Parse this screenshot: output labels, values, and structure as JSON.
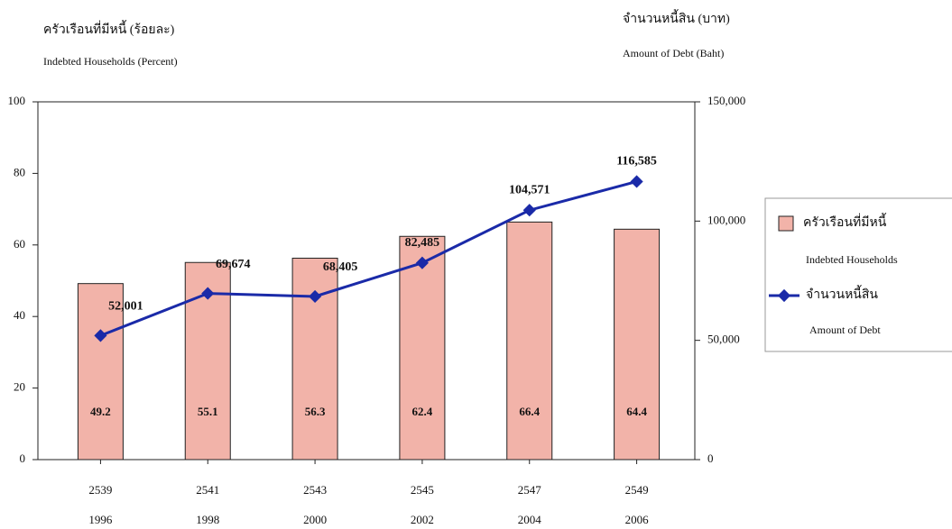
{
  "chart_data": {
    "type": "bar_line",
    "y_label": "ครัวเรือนที่มีหนี้ (ร้อยละ)",
    "y_label_en": "Indebted Households (Percent)",
    "y2_label": "จำนวนหนี้สิน (บาท)",
    "y2_label_en": "Amount of Debt (Baht)",
    "categories": [
      "2539",
      "2541",
      "2543",
      "2545",
      "2547",
      "2549"
    ],
    "categories_en": [
      "1996",
      "1998",
      "2000",
      "2002",
      "2004",
      "2006"
    ],
    "series": [
      {
        "name": "ครัวเรือนที่มีหนี้",
        "name_en": "Indebted Households",
        "type": "bar",
        "color": "#f2b3a9",
        "values": [
          49.2,
          55.1,
          56.3,
          62.4,
          66.4,
          64.4
        ]
      },
      {
        "name": "จำนวนหนี้สิน",
        "name_en": "Amount of Debt",
        "type": "line",
        "axis": "y2",
        "color": "#1a2aa8",
        "values": [
          52001,
          69674,
          68405,
          82485,
          104571,
          116585
        ],
        "value_labels": [
          "52,001",
          "69,674",
          "68,405",
          "82,485",
          "104,571",
          "116,585"
        ]
      }
    ],
    "ylim": [
      0,
      100
    ],
    "yticks": [
      0,
      20,
      40,
      60,
      80,
      100
    ],
    "y2lim": [
      0,
      150000
    ],
    "y2ticks": [
      0,
      {
        "value": 50000,
        "label": "50,000"
      },
      {
        "value": 100000,
        "label": "100,000"
      },
      {
        "value": 150000,
        "label": "150,000"
      }
    ],
    "legend": "right"
  }
}
